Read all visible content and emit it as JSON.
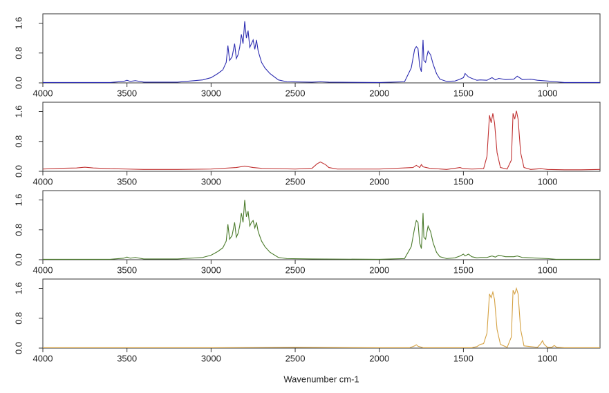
{
  "chart_data": [
    {
      "type": "line",
      "x": [
        4000,
        3800,
        3600,
        3520,
        3500,
        3480,
        3450,
        3400,
        3200,
        3050,
        3000,
        2960,
        2930,
        2910,
        2900,
        2890,
        2875,
        2860,
        2850,
        2840,
        2830,
        2820,
        2810,
        2800,
        2790,
        2780,
        2770,
        2760,
        2750,
        2740,
        2730,
        2720,
        2700,
        2680,
        2650,
        2600,
        2550,
        2400,
        2350,
        2300,
        2000,
        1850,
        1810,
        1790,
        1780,
        1770,
        1760,
        1750,
        1745,
        1740,
        1735,
        1725,
        1710,
        1695,
        1680,
        1660,
        1640,
        1600,
        1550,
        1520,
        1500,
        1490,
        1470,
        1450,
        1420,
        1400,
        1360,
        1330,
        1310,
        1290,
        1250,
        1200,
        1180,
        1150,
        1100,
        1060,
        1000,
        950,
        900,
        800,
        688
      ],
      "series": [
        {
          "color": "#2b2bb0",
          "values": [
            0.01,
            0.01,
            0.01,
            0.04,
            0.07,
            0.04,
            0.06,
            0.02,
            0.02,
            0.08,
            0.14,
            0.25,
            0.35,
            0.55,
            1.0,
            0.6,
            0.7,
            1.05,
            0.65,
            0.75,
            0.95,
            1.3,
            1.05,
            1.65,
            1.2,
            1.4,
            0.95,
            1.05,
            1.15,
            0.9,
            1.15,
            0.85,
            0.55,
            0.4,
            0.25,
            0.08,
            0.03,
            0.02,
            0.03,
            0.02,
            0.01,
            0.03,
            0.4,
            0.9,
            0.97,
            0.92,
            0.45,
            0.3,
            0.7,
            1.15,
            0.6,
            0.55,
            0.85,
            0.75,
            0.5,
            0.25,
            0.1,
            0.04,
            0.05,
            0.1,
            0.14,
            0.25,
            0.16,
            0.12,
            0.07,
            0.08,
            0.07,
            0.14,
            0.08,
            0.12,
            0.09,
            0.1,
            0.18,
            0.09,
            0.1,
            0.07,
            0.05,
            0.03,
            0.01,
            0.01,
            0.01
          ]
        }
      ],
      "xlim": [
        4000,
        688
      ],
      "ylim": [
        0,
        1.85
      ],
      "xticks": [
        4000,
        3500,
        3000,
        2500,
        2000,
        1500,
        1000
      ],
      "yticks": [
        {
          "value": 0,
          "label": "0.0"
        },
        {
          "value": 0.8,
          "label": "0.8"
        },
        {
          "value": 1.6,
          "label": "1.6"
        }
      ]
    },
    {
      "type": "line",
      "x": [
        4000,
        3900,
        3800,
        3750,
        3700,
        3600,
        3500,
        3400,
        3200,
        3000,
        2850,
        2800,
        2750,
        2700,
        2500,
        2400,
        2370,
        2350,
        2320,
        2300,
        2250,
        2000,
        1800,
        1780,
        1760,
        1750,
        1740,
        1700,
        1600,
        1520,
        1500,
        1450,
        1380,
        1360,
        1345,
        1335,
        1325,
        1315,
        1300,
        1280,
        1240,
        1215,
        1205,
        1195,
        1185,
        1175,
        1160,
        1140,
        1100,
        1040,
        1020,
        1000,
        900,
        800,
        688
      ],
      "series": [
        {
          "color": "#c03030",
          "values": [
            0.06,
            0.08,
            0.09,
            0.11,
            0.09,
            0.07,
            0.06,
            0.05,
            0.05,
            0.06,
            0.1,
            0.14,
            0.1,
            0.08,
            0.06,
            0.08,
            0.2,
            0.25,
            0.18,
            0.1,
            0.06,
            0.06,
            0.1,
            0.16,
            0.1,
            0.18,
            0.12,
            0.08,
            0.05,
            0.1,
            0.07,
            0.06,
            0.07,
            0.4,
            1.5,
            1.3,
            1.55,
            1.3,
            0.5,
            0.1,
            0.06,
            0.3,
            1.55,
            1.4,
            1.62,
            1.4,
            0.5,
            0.1,
            0.05,
            0.07,
            0.06,
            0.05,
            0.04,
            0.04,
            0.05
          ]
        }
      ],
      "xlim": [
        4000,
        688
      ],
      "ylim": [
        0,
        1.85
      ],
      "xticks": [
        4000,
        3500,
        3000,
        2500,
        2000,
        1500,
        1000
      ],
      "yticks": [
        {
          "value": 0,
          "label": "0.0"
        },
        {
          "value": 0.8,
          "label": "0.8"
        },
        {
          "value": 1.6,
          "label": "1.6"
        }
      ]
    },
    {
      "type": "line",
      "x": [
        4000,
        3800,
        3600,
        3520,
        3500,
        3480,
        3450,
        3400,
        3200,
        3050,
        3000,
        2960,
        2930,
        2910,
        2900,
        2890,
        2875,
        2860,
        2850,
        2840,
        2830,
        2820,
        2810,
        2800,
        2790,
        2780,
        2770,
        2760,
        2750,
        2740,
        2730,
        2720,
        2700,
        2680,
        2650,
        2600,
        2550,
        2400,
        2000,
        1850,
        1810,
        1790,
        1780,
        1770,
        1760,
        1750,
        1745,
        1740,
        1735,
        1725,
        1710,
        1695,
        1680,
        1660,
        1640,
        1600,
        1550,
        1520,
        1500,
        1490,
        1470,
        1450,
        1420,
        1400,
        1360,
        1330,
        1310,
        1290,
        1250,
        1200,
        1180,
        1150,
        1100,
        1000,
        950,
        900,
        800,
        688
      ],
      "series": [
        {
          "color": "#4a7a2a",
          "values": [
            0.01,
            0.01,
            0.01,
            0.04,
            0.07,
            0.04,
            0.06,
            0.02,
            0.02,
            0.06,
            0.12,
            0.22,
            0.32,
            0.5,
            0.95,
            0.55,
            0.65,
            1.0,
            0.6,
            0.7,
            0.9,
            1.25,
            1.0,
            1.6,
            1.15,
            1.3,
            0.9,
            1.0,
            1.05,
            0.85,
            1.0,
            0.75,
            0.5,
            0.35,
            0.2,
            0.06,
            0.03,
            0.02,
            0.01,
            0.03,
            0.35,
            0.85,
            1.05,
            1.0,
            0.45,
            0.3,
            0.7,
            1.25,
            0.6,
            0.55,
            0.9,
            0.75,
            0.45,
            0.2,
            0.08,
            0.03,
            0.05,
            0.1,
            0.15,
            0.1,
            0.15,
            0.08,
            0.05,
            0.06,
            0.06,
            0.1,
            0.07,
            0.12,
            0.08,
            0.08,
            0.1,
            0.06,
            0.05,
            0.03,
            0.01,
            0.01,
            0.01,
            0.01
          ]
        }
      ],
      "xlim": [
        4000,
        688
      ],
      "ylim": [
        0,
        1.85
      ],
      "xticks": [
        4000,
        3500,
        3000,
        2500,
        2000,
        1500,
        1000
      ],
      "yticks": [
        {
          "value": 0,
          "label": "0.0"
        },
        {
          "value": 0.8,
          "label": "0.8"
        },
        {
          "value": 1.6,
          "label": "1.6"
        }
      ]
    },
    {
      "type": "line",
      "x": [
        4000,
        3500,
        3000,
        2500,
        2000,
        1820,
        1790,
        1780,
        1770,
        1740,
        1450,
        1420,
        1400,
        1380,
        1360,
        1345,
        1335,
        1325,
        1315,
        1300,
        1280,
        1240,
        1215,
        1205,
        1195,
        1185,
        1175,
        1160,
        1140,
        1060,
        1040,
        1030,
        1020,
        1000,
        975,
        960,
        945,
        900,
        800,
        688
      ],
      "series": [
        {
          "color": "#d4a040",
          "values": [
            0.01,
            0.01,
            0.01,
            0.02,
            0.01,
            0.01,
            0.06,
            0.09,
            0.05,
            0.01,
            0.01,
            0.04,
            0.1,
            0.12,
            0.4,
            1.45,
            1.35,
            1.5,
            1.3,
            0.5,
            0.1,
            0.02,
            0.3,
            1.55,
            1.45,
            1.6,
            1.45,
            0.5,
            0.06,
            0.02,
            0.12,
            0.2,
            0.1,
            0.02,
            0.02,
            0.07,
            0.02,
            0.01,
            0.01,
            0.01
          ]
        }
      ],
      "xlim": [
        4000,
        688
      ],
      "ylim": [
        0,
        1.85
      ],
      "xticks": [
        4000,
        3500,
        3000,
        2500,
        2000,
        1500,
        1000
      ],
      "yticks": [
        {
          "value": 0,
          "label": "0.0"
        },
        {
          "value": 0.8,
          "label": "0.8"
        },
        {
          "value": 1.6,
          "label": "1.6"
        }
      ],
      "x_label": "Wavenumber cm-1"
    }
  ]
}
